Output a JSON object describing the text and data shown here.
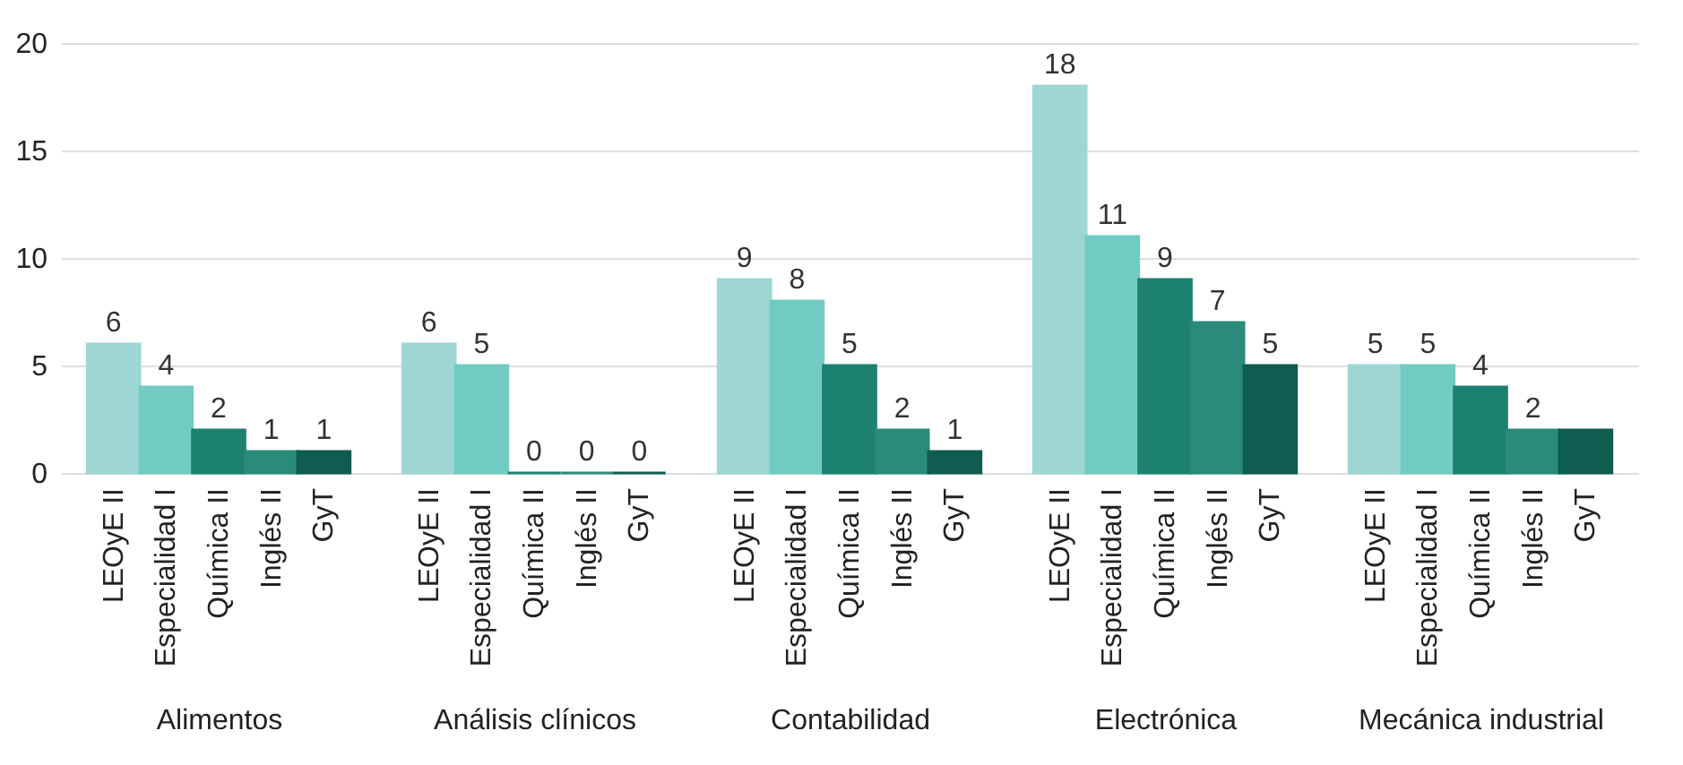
{
  "chart_data": [
    {
      "type": "bar",
      "xlabel": "Alimentos",
      "categories": [
        "LEOyE II",
        "Especialidad I",
        "Química II",
        "Inglés II",
        "GyT"
      ],
      "values": [
        6,
        4,
        2,
        1,
        1
      ],
      "colors": [
        "#9dd6d3",
        "#72cbc3",
        "#1d8170",
        "#2a8b7a",
        "#0f5c50"
      ],
      "data_labels": true,
      "ylim": [
        0,
        20
      ],
      "yticks": [
        0,
        5,
        10,
        15,
        20
      ],
      "grid": "y"
    },
    {
      "type": "bar",
      "xlabel": "Análisis clínicos",
      "categories": [
        "LEOyE II",
        "Especialidad I",
        "Química II",
        "Inglés II",
        "GyT"
      ],
      "values": [
        6,
        5,
        0,
        0,
        0
      ],
      "colors": [
        "#9dd6d3",
        "#72cbc3",
        "#1d8170",
        "#2a8b7a",
        "#0f5c50"
      ],
      "data_labels": true,
      "ylim": [
        0,
        20
      ],
      "yticks": [
        0,
        5,
        10,
        15,
        20
      ],
      "grid": "y",
      "tick_labels": "x"
    },
    {
      "type": "bar",
      "xlabel": "Contabilidad",
      "categories": [
        "LEOyE II",
        "Especialidad I",
        "Química II",
        "Inglés II",
        "GyT"
      ],
      "values": [
        9,
        8,
        5,
        2,
        1
      ],
      "colors": [
        "#9dd6d3",
        "#72cbc3",
        "#1d8170",
        "#2a8b7a",
        "#0f5c50"
      ],
      "data_labels": true,
      "ylim": [
        0,
        20
      ],
      "yticks": [
        0,
        5,
        10,
        15,
        20
      ],
      "grid": "y",
      "tick_labels": "x"
    },
    {
      "type": "bar",
      "xlabel": "Electrónica",
      "categories": [
        "LEOyE II",
        "Especialidad I",
        "Química II",
        "Inglés II",
        "GyT"
      ],
      "values": [
        18,
        11,
        9,
        7,
        5
      ],
      "colors": [
        "#9dd6d3",
        "#72cbc3",
        "#1d8170",
        "#2a8b7a",
        "#0f5c50"
      ],
      "data_labels": true,
      "ylim": [
        0,
        20
      ],
      "yticks": [
        0,
        5,
        10,
        15,
        20
      ],
      "grid": "y",
      "tick_labels": "x"
    },
    {
      "type": "bar",
      "xlabel": "Mecánica industrial",
      "categories": [
        "LEOyE II",
        "Especialidad I",
        "Química II",
        "Inglés II",
        "GyT"
      ],
      "values": [
        5,
        5,
        4,
        2,
        2
      ],
      "colors": [
        "#9dd6d3",
        "#72cbc3",
        "#1d8170",
        "#2a8b7a",
        "#0f5c50"
      ],
      "value_labels": [
        "5",
        "5",
        "4",
        "2",
        null
      ],
      "ylim": [
        0,
        20
      ],
      "yticks": [
        0,
        5,
        10,
        15,
        20
      ],
      "grid": "y",
      "tick_labels": "x"
    }
  ]
}
